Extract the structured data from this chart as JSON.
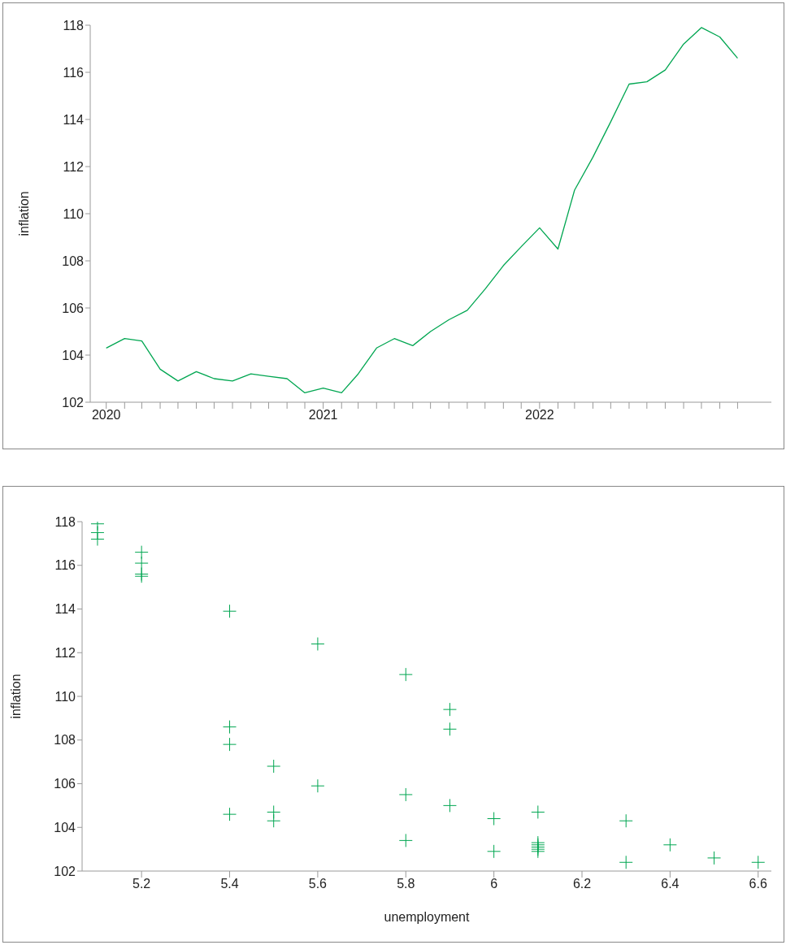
{
  "chart_data": [
    {
      "type": "line",
      "ylabel": "inflation",
      "color": "#00a651",
      "grid": false,
      "legend": false,
      "marker": "none",
      "line_style": "solid",
      "x": [
        "2020-01",
        "2020-02",
        "2020-03",
        "2020-04",
        "2020-05",
        "2020-06",
        "2020-07",
        "2020-08",
        "2020-09",
        "2020-10",
        "2020-11",
        "2020-12",
        "2021-01",
        "2021-02",
        "2021-03",
        "2021-04",
        "2021-05",
        "2021-06",
        "2021-07",
        "2021-08",
        "2021-09",
        "2021-10",
        "2021-11",
        "2021-12",
        "2022-01",
        "2022-02",
        "2022-03",
        "2022-04",
        "2022-05",
        "2022-06",
        "2022-07",
        "2022-08",
        "2022-09",
        "2022-10",
        "2022-11",
        "2022-12"
      ],
      "values": [
        104.3,
        104.7,
        104.6,
        103.4,
        102.9,
        103.3,
        103.0,
        102.9,
        103.2,
        103.1,
        103.0,
        102.4,
        102.6,
        102.4,
        103.2,
        104.3,
        104.7,
        104.4,
        105.0,
        105.5,
        105.9,
        106.8,
        107.8,
        108.6,
        109.4,
        108.5,
        111.0,
        112.4,
        113.9,
        115.5,
        115.6,
        116.1,
        117.2,
        117.9,
        117.5,
        116.6
      ],
      "xlim": [
        "2019-12-05",
        "2023-01-27"
      ],
      "xticks": [
        {
          "value": "2020-01",
          "label": "2020"
        },
        {
          "value": "2020-02",
          "label": null
        },
        {
          "value": "2020-03",
          "label": null
        },
        {
          "value": "2020-04",
          "label": null
        },
        {
          "value": "2020-05",
          "label": null
        },
        {
          "value": "2020-06",
          "label": null
        },
        {
          "value": "2020-07",
          "label": null
        },
        {
          "value": "2020-08",
          "label": null
        },
        {
          "value": "2020-09",
          "label": null
        },
        {
          "value": "2020-10",
          "label": null
        },
        {
          "value": "2020-11",
          "label": null
        },
        {
          "value": "2020-12",
          "label": null
        },
        {
          "value": "2021-01",
          "label": "2021"
        },
        {
          "value": "2021-02",
          "label": null
        },
        {
          "value": "2021-03",
          "label": null
        },
        {
          "value": "2021-04",
          "label": null
        },
        {
          "value": "2021-05",
          "label": null
        },
        {
          "value": "2021-06",
          "label": null
        },
        {
          "value": "2021-07",
          "label": null
        },
        {
          "value": "2021-08",
          "label": null
        },
        {
          "value": "2021-09",
          "label": null
        },
        {
          "value": "2021-10",
          "label": null
        },
        {
          "value": "2021-11",
          "label": null
        },
        {
          "value": "2021-12",
          "label": null
        },
        {
          "value": "2022-01",
          "label": "2022"
        },
        {
          "value": "2022-02",
          "label": null
        },
        {
          "value": "2022-03",
          "label": null
        },
        {
          "value": "2022-04",
          "label": null
        },
        {
          "value": "2022-05",
          "label": null
        },
        {
          "value": "2022-06",
          "label": null
        },
        {
          "value": "2022-07",
          "label": null
        },
        {
          "value": "2022-08",
          "label": null
        },
        {
          "value": "2022-09",
          "label": null
        },
        {
          "value": "2022-10",
          "label": null
        },
        {
          "value": "2022-11",
          "label": null
        },
        {
          "value": "2022-12",
          "label": null
        }
      ],
      "ylim": [
        102,
        118
      ],
      "yticks": [
        102,
        104,
        106,
        108,
        110,
        112,
        114,
        116,
        118
      ]
    },
    {
      "type": "scatter",
      "xlabel": "unemployment",
      "ylabel": "inflation",
      "color": "#00a651",
      "grid": false,
      "legend": false,
      "marker": "cross",
      "x": [
        5.1,
        5.1,
        5.1,
        5.2,
        5.2,
        5.2,
        5.2,
        5.4,
        5.4,
        5.4,
        5.4,
        5.5,
        5.5,
        5.5,
        5.6,
        5.6,
        5.8,
        5.8,
        5.8,
        5.9,
        5.9,
        5.9,
        6.0,
        6.0,
        6.1,
        6.1,
        6.1,
        6.1,
        6.1,
        6.1,
        6.3,
        6.3,
        6.4,
        6.5,
        6.6
      ],
      "values": [
        117.9,
        117.5,
        117.2,
        116.6,
        116.1,
        115.6,
        115.5,
        113.9,
        108.6,
        107.8,
        104.6,
        106.8,
        104.7,
        104.3,
        112.4,
        105.9,
        111.0,
        105.5,
        103.4,
        109.4,
        108.5,
        105.0,
        104.4,
        102.9,
        104.7,
        103.3,
        103.2,
        103.1,
        103.0,
        102.9,
        104.3,
        102.4,
        103.2,
        102.6,
        102.4
      ],
      "xlim": [
        5.065,
        6.63
      ],
      "xticks": [
        5.2,
        5.4,
        5.6,
        5.8,
        6,
        6.2,
        6.4,
        6.6
      ],
      "ylim": [
        102,
        118
      ],
      "yticks": [
        102,
        104,
        106,
        108,
        110,
        112,
        114,
        116,
        118
      ]
    }
  ]
}
